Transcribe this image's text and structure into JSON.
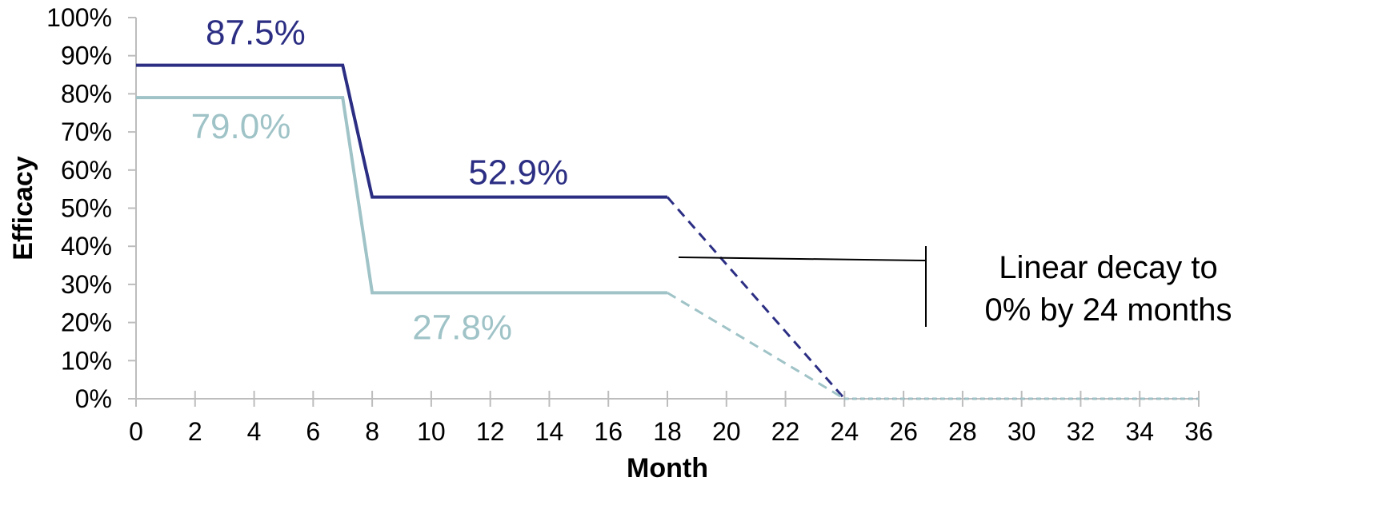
{
  "chart_data": {
    "type": "line",
    "title": "",
    "xlabel": "Month",
    "ylabel": "Efficacy",
    "xlim": [
      0,
      36
    ],
    "ylim": [
      0,
      100
    ],
    "xticks": [
      0,
      2,
      4,
      6,
      8,
      10,
      12,
      14,
      16,
      18,
      20,
      22,
      24,
      26,
      28,
      30,
      32,
      34,
      36
    ],
    "yticks": [
      "0%",
      "10%",
      "20%",
      "30%",
      "40%",
      "50%",
      "60%",
      "70%",
      "80%",
      "90%",
      "100%"
    ],
    "grid": false,
    "series": [
      {
        "color": "#2b2e83",
        "solid": [
          {
            "x": 0,
            "y": 87.5
          },
          {
            "x": 7,
            "y": 87.5
          },
          {
            "x": 8,
            "y": 52.9
          },
          {
            "x": 18,
            "y": 52.9
          }
        ],
        "dashed": [
          {
            "x": 18,
            "y": 52.9
          },
          {
            "x": 24,
            "y": 0
          }
        ],
        "dotted": [
          {
            "x": 24,
            "y": 0
          },
          {
            "x": 36,
            "y": 0
          }
        ],
        "labels": [
          "87.5%",
          "52.9%"
        ]
      },
      {
        "color": "#9fc3c7",
        "solid": [
          {
            "x": 0,
            "y": 79.0
          },
          {
            "x": 7,
            "y": 79.0
          },
          {
            "x": 8,
            "y": 27.8
          },
          {
            "x": 18,
            "y": 27.8
          }
        ],
        "dashed": [
          {
            "x": 18,
            "y": 27.8
          },
          {
            "x": 24,
            "y": 0
          }
        ],
        "dotted": [
          {
            "x": 24,
            "y": 0
          },
          {
            "x": 36,
            "y": 0
          }
        ],
        "labels": [
          "79.0%",
          "27.8%"
        ]
      }
    ],
    "annotation": {
      "lines": [
        "Linear decay to",
        "0% by 24 months"
      ],
      "color": "#000000"
    }
  }
}
